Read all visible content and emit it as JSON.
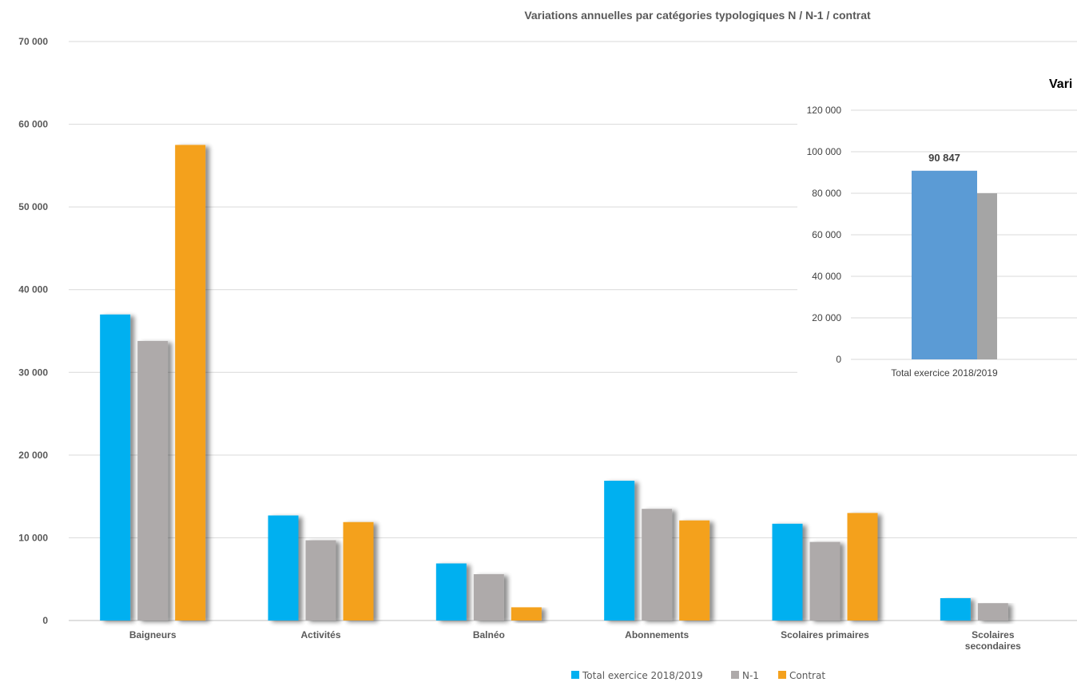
{
  "chart_data": [
    {
      "type": "bar",
      "title": "Variations annuelles par catégories typologiques N / N-1 / contrat",
      "xlabel": "",
      "ylabel": "",
      "ylim": [
        0,
        70000
      ],
      "yticks": [
        0,
        10000,
        20000,
        30000,
        40000,
        50000,
        60000,
        70000
      ],
      "ytick_labels": [
        "0",
        "10 000",
        "20 000",
        "30 000",
        "40 000",
        "50 000",
        "60 000",
        "70 000"
      ],
      "categories": [
        "Baigneurs",
        "Activités",
        "Balnéo",
        "Abonnements",
        "Scolaires primaires",
        "Scolaires secondaires"
      ],
      "category_label_lines": [
        [
          "Baigneurs"
        ],
        [
          "Activités"
        ],
        [
          "Balnéo"
        ],
        [
          "Abonnements"
        ],
        [
          "Scolaires primaires"
        ],
        [
          "Scolaires",
          "secondaires"
        ]
      ],
      "series": [
        {
          "name": "Total exercice 2018/2019",
          "color": "#00b0f0",
          "values": [
            37000,
            12700,
            6900,
            16900,
            11700,
            2700
          ]
        },
        {
          "name": "N-1",
          "color": "#aeaaaa",
          "values": [
            33800,
            9700,
            5600,
            13500,
            9500,
            2100
          ]
        },
        {
          "name": "Contrat",
          "color": "#f4a11d",
          "values": [
            57500,
            11900,
            1600,
            12100,
            13000,
            0
          ]
        }
      ],
      "grid": true,
      "legend": "bottom"
    },
    {
      "type": "bar",
      "title": "Vari",
      "ylim": [
        0,
        120000
      ],
      "yticks": [
        0,
        20000,
        40000,
        60000,
        80000,
        100000,
        120000
      ],
      "ytick_labels": [
        "0",
        "20 000",
        "40 000",
        "60 000",
        "80 000",
        "100 000",
        "120 000"
      ],
      "categories": [
        "Total exercice 2018/2019"
      ],
      "series": [
        {
          "color": "#5b9bd5",
          "values": [
            90847
          ],
          "data_labels": [
            "90 847"
          ]
        },
        {
          "color": "#a5a5a5",
          "values": [
            80000
          ]
        }
      ],
      "grid": true
    }
  ]
}
